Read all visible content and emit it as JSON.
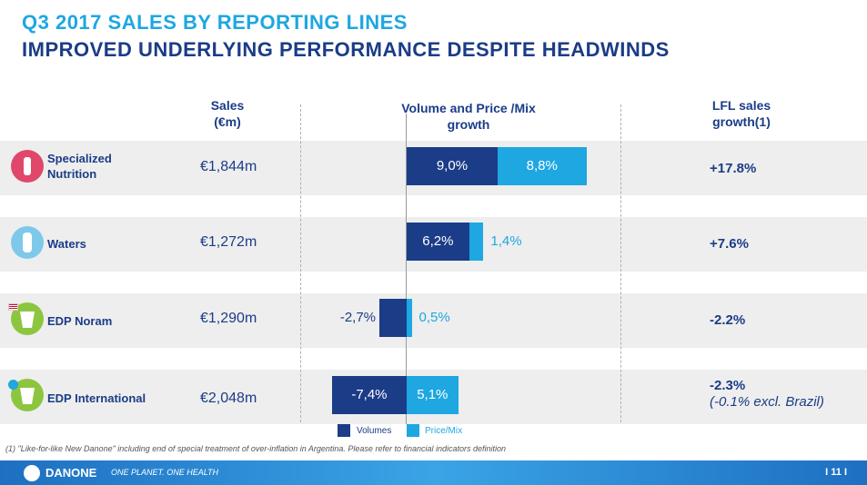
{
  "title": "Q3 2017 SALES BY REPORTING LINES",
  "subtitle": "IMPROVED UNDERLYING PERFORMANCE DESPITE HEADWINDS",
  "headers": {
    "sales": "Sales (€m)",
    "growth": "Volume and Price /Mix growth",
    "lfl": "LFL sales growth(1)"
  },
  "rows": [
    {
      "label": "Specialized Nutrition",
      "sales": "€1,844m",
      "volume_label": "9,0%",
      "pricemix_label": "8,8%",
      "lfl": "+17.8%",
      "lfl_note": ""
    },
    {
      "label": "Waters",
      "sales": "€1,272m",
      "volume_label": "6,2%",
      "pricemix_label": "1,4%",
      "lfl": "+7.6%",
      "lfl_note": ""
    },
    {
      "label": "EDP Noram",
      "sales": "€1,290m",
      "volume_label": "-2,7%",
      "pricemix_label": "0,5%",
      "lfl": "-2.2%",
      "lfl_note": ""
    },
    {
      "label": "EDP International",
      "sales": "€2,048m",
      "volume_label": "-7,4%",
      "pricemix_label": "5,1%",
      "lfl": "-2.3%",
      "lfl_note": "(-0.1% excl. Brazil)"
    }
  ],
  "legend": {
    "volumes": "Volumes",
    "pricemix": "Price/Mix"
  },
  "footnote": "(1)  \"Like-for-like New Danone\" including end of  special treatment of over-inflation in Argentina. Please refer to financial indicators definition",
  "footer": {
    "brand": "DANONE",
    "tagline": "ONE PLANET. ONE HEALTH",
    "page": "I 11 I"
  },
  "colors": {
    "volumes": "#1b3c87",
    "pricemix": "#1ea7e1",
    "title": "#1ea7e1",
    "text": "#1b3c87"
  },
  "chart_data": {
    "type": "bar",
    "categories": [
      "Specialized Nutrition",
      "Waters",
      "EDP Noram",
      "EDP International"
    ],
    "series": [
      {
        "name": "Volumes",
        "values": [
          9.0,
          6.2,
          -2.7,
          -7.4
        ]
      },
      {
        "name": "Price/Mix",
        "values": [
          8.8,
          1.4,
          0.5,
          5.1
        ]
      }
    ],
    "orientation": "horizontal",
    "stacked": true,
    "legend_position": "bottom"
  }
}
